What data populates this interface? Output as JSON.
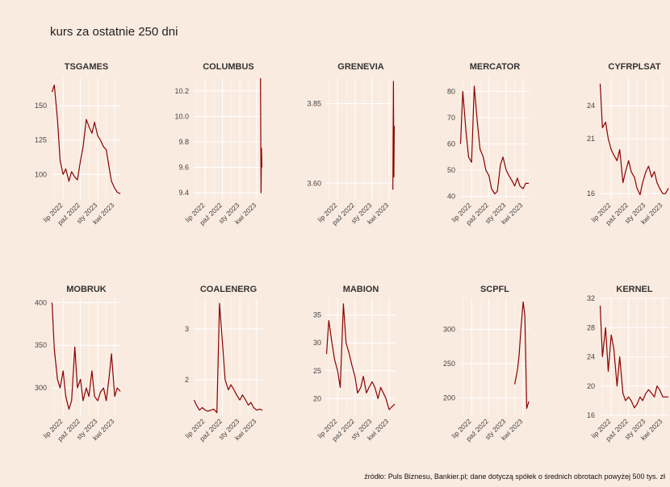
{
  "header": {
    "title": "kurs za ostatnie 250 dni",
    "caption": "źródło: Puls Biznesu, Bankier.pl; dane dotyczą spółek o średnich obrotach powyżej 500 tys. zł"
  },
  "colors": {
    "background": "#faebe0",
    "line": "#8b0000",
    "grid": "#ffffff"
  },
  "chart_data": [
    {
      "type": "line",
      "title": "TSGAMES",
      "ylim": [
        82,
        170
      ],
      "yticks": [
        100,
        125,
        150
      ],
      "x_dates": [
        "2022-05-03",
        "2022-05-15",
        "2022-06-01",
        "2022-06-15",
        "2022-07-01",
        "2022-07-15",
        "2022-08-01",
        "2022-08-15",
        "2022-09-01",
        "2022-09-15",
        "2022-10-01",
        "2022-10-15",
        "2022-11-01",
        "2022-11-15",
        "2022-12-01",
        "2022-12-15",
        "2023-01-01",
        "2023-01-15",
        "2023-02-01",
        "2023-02-15",
        "2023-03-01",
        "2023-03-15",
        "2023-04-01",
        "2023-04-15",
        "2023-05-01"
      ],
      "values": [
        160,
        165,
        140,
        110,
        100,
        104,
        95,
        102,
        98,
        96,
        110,
        120,
        140,
        135,
        130,
        138,
        128,
        125,
        120,
        118,
        106,
        95,
        90,
        87,
        86
      ]
    },
    {
      "type": "line",
      "title": "COLUMBUS",
      "ylim": [
        9.35,
        10.3
      ],
      "yticks": [
        9.4,
        9.6,
        9.8,
        10.0,
        10.2
      ],
      "x_dates": [
        "2023-04-21",
        "2023-04-24",
        "2023-04-26",
        "2023-04-28"
      ],
      "values": [
        10.3,
        9.4,
        9.75,
        9.6
      ]
    },
    {
      "type": "line",
      "title": "GRENEVIA",
      "ylim": [
        3.55,
        3.93
      ],
      "yticks": [
        3.6,
        3.85
      ],
      "x_dates": [
        "2023-04-21",
        "2023-04-24",
        "2023-04-26",
        "2023-04-28"
      ],
      "values": [
        3.58,
        3.92,
        3.62,
        3.78
      ]
    },
    {
      "type": "line",
      "title": "MERCATOR",
      "ylim": [
        39,
        85
      ],
      "yticks": [
        40,
        50,
        60,
        70,
        80
      ],
      "x_dates": [
        "2022-05-03",
        "2022-05-15",
        "2022-06-01",
        "2022-06-15",
        "2022-07-01",
        "2022-07-15",
        "2022-08-01",
        "2022-08-15",
        "2022-09-01",
        "2022-09-15",
        "2022-10-01",
        "2022-10-15",
        "2022-11-01",
        "2022-11-15",
        "2022-12-01",
        "2022-12-15",
        "2023-01-01",
        "2023-01-15",
        "2023-02-01",
        "2023-02-15",
        "2023-03-01",
        "2023-03-15",
        "2023-04-01",
        "2023-04-15",
        "2023-05-01"
      ],
      "values": [
        60,
        80,
        65,
        55,
        53,
        82,
        68,
        58,
        55,
        50,
        48,
        43,
        41,
        42,
        52,
        55,
        50,
        48,
        46,
        44,
        47,
        44,
        43,
        45,
        45
      ]
    },
    {
      "type": "line",
      "title": "CYFRPLSAT",
      "ylim": [
        15.5,
        26.5
      ],
      "yticks": [
        16,
        21,
        24
      ],
      "x_dates": [
        "2022-05-03",
        "2022-05-15",
        "2022-06-01",
        "2022-06-15",
        "2022-07-01",
        "2022-07-15",
        "2022-08-01",
        "2022-08-15",
        "2022-09-01",
        "2022-09-15",
        "2022-10-01",
        "2022-10-15",
        "2022-11-01",
        "2022-11-15",
        "2022-12-01",
        "2022-12-15",
        "2023-01-01",
        "2023-01-15",
        "2023-02-01",
        "2023-02-15",
        "2023-03-01",
        "2023-03-15",
        "2023-04-01",
        "2023-04-15",
        "2023-05-01"
      ],
      "values": [
        26,
        22,
        22.5,
        21,
        20,
        19.5,
        19,
        20,
        17,
        18,
        19,
        18,
        17.5,
        16.5,
        15.9,
        17,
        18,
        18.5,
        17.5,
        18,
        17,
        16.5,
        16,
        16,
        16.5
      ]
    },
    {
      "type": "line",
      "title": "MOBRUK",
      "ylim": [
        268,
        405
      ],
      "yticks": [
        300,
        350,
        400
      ],
      "x_dates": [
        "2022-05-03",
        "2022-05-15",
        "2022-06-01",
        "2022-06-15",
        "2022-07-01",
        "2022-07-15",
        "2022-08-01",
        "2022-08-15",
        "2022-09-01",
        "2022-09-15",
        "2022-10-01",
        "2022-10-15",
        "2022-11-01",
        "2022-11-15",
        "2022-12-01",
        "2022-12-15",
        "2023-01-01",
        "2023-01-15",
        "2023-02-01",
        "2023-02-15",
        "2023-03-01",
        "2023-03-15",
        "2023-04-01",
        "2023-04-15",
        "2023-05-01"
      ],
      "values": [
        400,
        345,
        310,
        300,
        320,
        290,
        275,
        285,
        348,
        300,
        310,
        285,
        300,
        290,
        320,
        290,
        285,
        295,
        300,
        285,
        310,
        340,
        290,
        300,
        296
      ]
    },
    {
      "type": "line",
      "title": "COALENERG",
      "ylim": [
        1.3,
        3.6
      ],
      "yticks": [
        2,
        3
      ],
      "x_dates": [
        "2022-05-03",
        "2022-05-15",
        "2022-06-01",
        "2022-06-15",
        "2022-07-01",
        "2022-07-15",
        "2022-08-01",
        "2022-08-15",
        "2022-09-01",
        "2022-09-15",
        "2022-10-01",
        "2022-10-15",
        "2022-11-01",
        "2022-11-15",
        "2022-12-01",
        "2022-12-15",
        "2023-01-01",
        "2023-01-15",
        "2023-02-01",
        "2023-02-15",
        "2023-03-01",
        "2023-03-15",
        "2023-04-01",
        "2023-04-15",
        "2023-05-01"
      ],
      "values": [
        1.6,
        1.5,
        1.4,
        1.45,
        1.4,
        1.38,
        1.4,
        1.42,
        1.35,
        3.5,
        2.7,
        2.0,
        1.8,
        1.9,
        1.8,
        1.7,
        1.6,
        1.7,
        1.6,
        1.5,
        1.55,
        1.45,
        1.4,
        1.42,
        1.4
      ]
    },
    {
      "type": "line",
      "title": "MABION",
      "ylim": [
        17,
        38
      ],
      "yticks": [
        20,
        25,
        30,
        35
      ],
      "x_dates": [
        "2022-05-03",
        "2022-05-15",
        "2022-06-01",
        "2022-06-15",
        "2022-07-01",
        "2022-07-15",
        "2022-08-01",
        "2022-08-15",
        "2022-09-01",
        "2022-09-15",
        "2022-10-01",
        "2022-10-15",
        "2022-11-01",
        "2022-11-15",
        "2022-12-01",
        "2022-12-15",
        "2023-01-01",
        "2023-01-15",
        "2023-02-01",
        "2023-02-15",
        "2023-03-01",
        "2023-03-15",
        "2023-04-01",
        "2023-04-15",
        "2023-05-01"
      ],
      "values": [
        28,
        34,
        30,
        27,
        25,
        22,
        37,
        30,
        28,
        26,
        24,
        21,
        22,
        24,
        21,
        22,
        23,
        22,
        20,
        22,
        21,
        20,
        18,
        18.5,
        19
      ]
    },
    {
      "type": "line",
      "title": "SCPFL",
      "ylim": [
        175,
        345
      ],
      "yticks": [
        200,
        250,
        300
      ],
      "x_dates": [
        "2023-02-15",
        "2023-03-01",
        "2023-03-10",
        "2023-03-20",
        "2023-04-01",
        "2023-04-10",
        "2023-04-20",
        "2023-05-01"
      ],
      "values": [
        220,
        240,
        260,
        300,
        340,
        320,
        185,
        195
      ]
    },
    {
      "type": "line",
      "title": "KERNEL",
      "ylim": [
        16,
        32
      ],
      "yticks": [
        16,
        20,
        24,
        28,
        32
      ],
      "x_dates": [
        "2022-05-03",
        "2022-05-15",
        "2022-06-01",
        "2022-06-15",
        "2022-07-01",
        "2022-07-15",
        "2022-08-01",
        "2022-08-15",
        "2022-09-01",
        "2022-09-15",
        "2022-10-01",
        "2022-10-15",
        "2022-11-01",
        "2022-11-15",
        "2022-12-01",
        "2022-12-15",
        "2023-01-01",
        "2023-01-15",
        "2023-02-01",
        "2023-02-15",
        "2023-03-01",
        "2023-03-15",
        "2023-04-01",
        "2023-04-15",
        "2023-05-01"
      ],
      "values": [
        31,
        24,
        28,
        22,
        27,
        25,
        20,
        24,
        19,
        18,
        18.5,
        18,
        17,
        17.5,
        18.5,
        18,
        19,
        19.5,
        19,
        18.5,
        20,
        19.5,
        18.5,
        18.5,
        18.5
      ]
    }
  ],
  "x_axis": {
    "ticks": [
      {
        "date": "2022-07-01",
        "label": "lip 2022"
      },
      {
        "date": "2022-10-01",
        "label": "paź 2022"
      },
      {
        "date": "2023-01-01",
        "label": "sty 2023"
      },
      {
        "date": "2023-04-01",
        "label": "kwi 2023"
      }
    ],
    "range": [
      "2022-05-01",
      "2023-05-05"
    ]
  }
}
